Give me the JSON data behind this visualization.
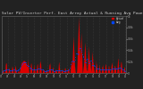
{
  "title": "Solar PV/Inverter Perf. East Array Actual & Running Avg Power Output",
  "title_fontsize": 3.2,
  "bg_color": "#222222",
  "plot_bg_color": "#222222",
  "bar_color": "#dd0000",
  "avg_color": "#0044ff",
  "ylim": [
    0,
    1.0
  ],
  "grid_color": "#555555",
  "num_points": 400,
  "ytick_labels": [
    "1k",
    "0.8k",
    "0.6k",
    "0.4k",
    "0.2k",
    "0"
  ],
  "ytick_vals": [
    1.0,
    0.8,
    0.6,
    0.4,
    0.2,
    0.0
  ]
}
